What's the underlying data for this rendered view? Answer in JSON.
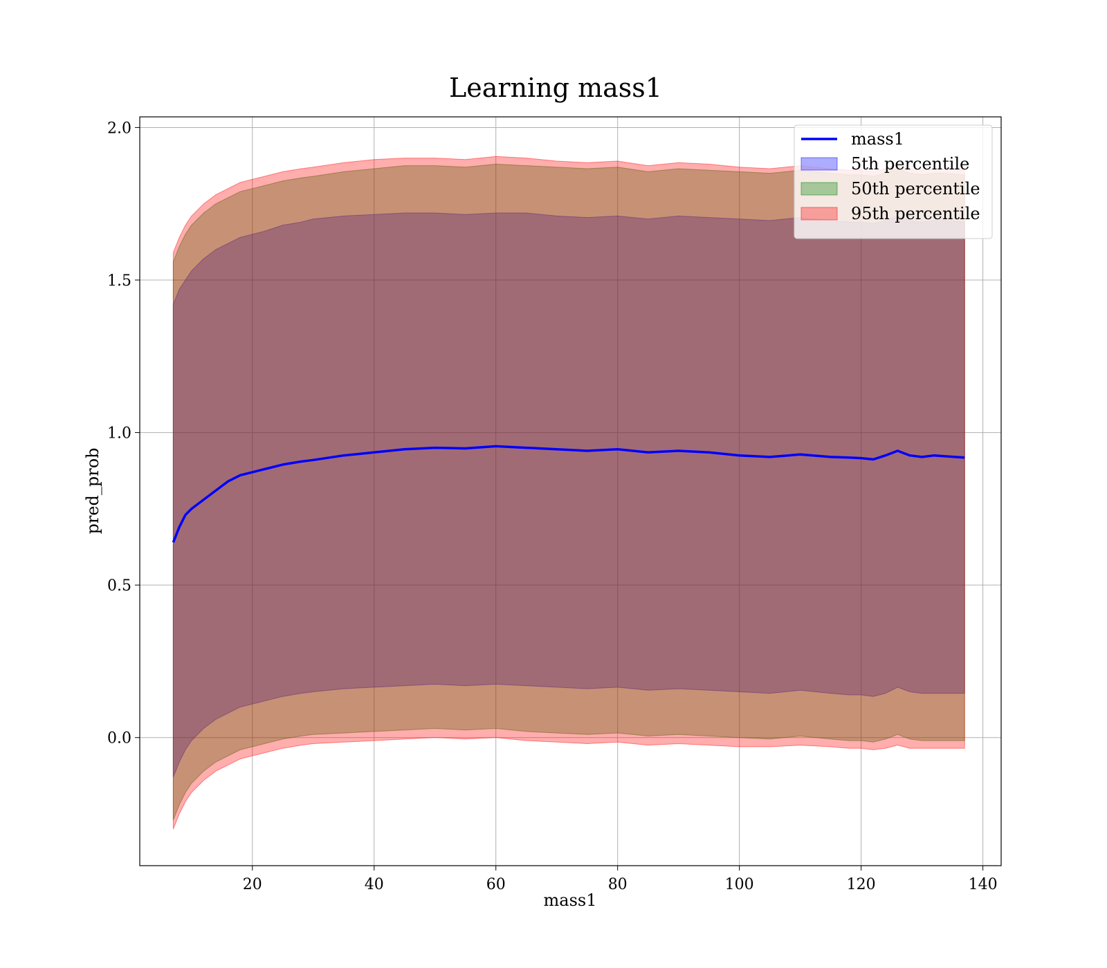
{
  "chart_data": {
    "type": "area",
    "title": "Learning mass1",
    "xlabel": "mass1",
    "ylabel": "pred_prob",
    "xlim": [
      1.5,
      143
    ],
    "ylim": [
      -0.42,
      2.035
    ],
    "xticks": [
      20,
      40,
      60,
      80,
      100,
      120,
      140
    ],
    "xtick_labels": [
      "20",
      "40",
      "60",
      "80",
      "100",
      "120",
      "140"
    ],
    "yticks": [
      0.0,
      0.5,
      1.0,
      1.5,
      2.0
    ],
    "ytick_labels": [
      "0.0",
      "0.5",
      "1.0",
      "1.5",
      "2.0"
    ],
    "grid": true,
    "legend": {
      "position": "top-right",
      "entries": [
        {
          "label": "mass1",
          "kind": "line",
          "color": "#0000ff"
        },
        {
          "label": "5th percentile",
          "kind": "band",
          "color": "#0000ff"
        },
        {
          "label": "50th percentile",
          "kind": "band",
          "color": "#008000"
        },
        {
          "label": "95th percentile",
          "kind": "band",
          "color": "#ff0000"
        }
      ]
    },
    "x": [
      7,
      8,
      9,
      10,
      12,
      14,
      16,
      18,
      20,
      22,
      25,
      28,
      30,
      35,
      40,
      45,
      50,
      55,
      60,
      65,
      70,
      75,
      80,
      85,
      90,
      95,
      100,
      105,
      110,
      115,
      118,
      120,
      122,
      124,
      126,
      128,
      130,
      132,
      134,
      137
    ],
    "series": [
      {
        "name": "mass1",
        "kind": "line",
        "color": "#0000ff",
        "values": [
          0.64,
          0.69,
          0.73,
          0.75,
          0.78,
          0.81,
          0.84,
          0.86,
          0.87,
          0.88,
          0.895,
          0.905,
          0.91,
          0.925,
          0.935,
          0.945,
          0.95,
          0.948,
          0.955,
          0.95,
          0.945,
          0.94,
          0.945,
          0.935,
          0.94,
          0.935,
          0.925,
          0.92,
          0.928,
          0.92,
          0.918,
          0.916,
          0.912,
          0.925,
          0.94,
          0.925,
          0.92,
          0.925,
          0.922,
          0.918
        ]
      },
      {
        "name": "5th percentile",
        "kind": "band",
        "color": "#0000ff",
        "upper": [
          1.42,
          1.47,
          1.5,
          1.53,
          1.57,
          1.6,
          1.62,
          1.64,
          1.65,
          1.66,
          1.68,
          1.69,
          1.7,
          1.71,
          1.715,
          1.72,
          1.72,
          1.715,
          1.72,
          1.72,
          1.71,
          1.705,
          1.71,
          1.7,
          1.71,
          1.705,
          1.7,
          1.695,
          1.705,
          1.695,
          1.69,
          1.69,
          1.685,
          1.695,
          1.71,
          1.695,
          1.69,
          1.695,
          1.695,
          1.69
        ],
        "lower": [
          -0.13,
          -0.08,
          -0.04,
          -0.01,
          0.03,
          0.06,
          0.08,
          0.1,
          0.11,
          0.12,
          0.135,
          0.145,
          0.15,
          0.16,
          0.165,
          0.17,
          0.175,
          0.17,
          0.175,
          0.17,
          0.165,
          0.16,
          0.165,
          0.155,
          0.16,
          0.155,
          0.15,
          0.145,
          0.155,
          0.145,
          0.14,
          0.14,
          0.135,
          0.145,
          0.165,
          0.15,
          0.145,
          0.145,
          0.145,
          0.145
        ]
      },
      {
        "name": "50th percentile",
        "kind": "band",
        "color": "#008000",
        "upper": [
          1.56,
          1.61,
          1.65,
          1.68,
          1.72,
          1.75,
          1.77,
          1.79,
          1.8,
          1.81,
          1.825,
          1.835,
          1.84,
          1.855,
          1.865,
          1.875,
          1.875,
          1.87,
          1.88,
          1.875,
          1.87,
          1.865,
          1.87,
          1.855,
          1.865,
          1.86,
          1.855,
          1.85,
          1.86,
          1.85,
          1.845,
          1.845,
          1.84,
          1.85,
          1.865,
          1.85,
          1.845,
          1.85,
          1.85,
          1.845
        ],
        "lower": [
          -0.27,
          -0.22,
          -0.18,
          -0.15,
          -0.11,
          -0.08,
          -0.06,
          -0.04,
          -0.03,
          -0.02,
          -0.005,
          0.005,
          0.01,
          0.015,
          0.02,
          0.025,
          0.03,
          0.025,
          0.03,
          0.02,
          0.015,
          0.01,
          0.015,
          0.005,
          0.01,
          0.005,
          0.0,
          -0.005,
          0.005,
          -0.005,
          -0.01,
          -0.01,
          -0.015,
          -0.005,
          0.01,
          -0.005,
          -0.01,
          -0.01,
          -0.01,
          -0.01
        ]
      },
      {
        "name": "95th percentile",
        "kind": "band",
        "color": "#ff0000",
        "upper": [
          1.59,
          1.64,
          1.68,
          1.71,
          1.75,
          1.78,
          1.8,
          1.82,
          1.83,
          1.84,
          1.855,
          1.865,
          1.87,
          1.885,
          1.895,
          1.9,
          1.9,
          1.895,
          1.905,
          1.9,
          1.89,
          1.885,
          1.89,
          1.875,
          1.885,
          1.88,
          1.87,
          1.865,
          1.875,
          1.865,
          1.86,
          1.86,
          1.855,
          1.865,
          1.88,
          1.865,
          1.86,
          1.865,
          1.865,
          1.86
        ],
        "lower": [
          -0.3,
          -0.25,
          -0.21,
          -0.18,
          -0.14,
          -0.11,
          -0.09,
          -0.07,
          -0.06,
          -0.05,
          -0.035,
          -0.025,
          -0.02,
          -0.015,
          -0.01,
          -0.005,
          0.0,
          -0.005,
          0.0,
          -0.01,
          -0.015,
          -0.02,
          -0.015,
          -0.025,
          -0.02,
          -0.025,
          -0.03,
          -0.03,
          -0.025,
          -0.03,
          -0.035,
          -0.035,
          -0.04,
          -0.035,
          -0.025,
          -0.035,
          -0.035,
          -0.035,
          -0.035,
          -0.035
        ]
      }
    ]
  }
}
